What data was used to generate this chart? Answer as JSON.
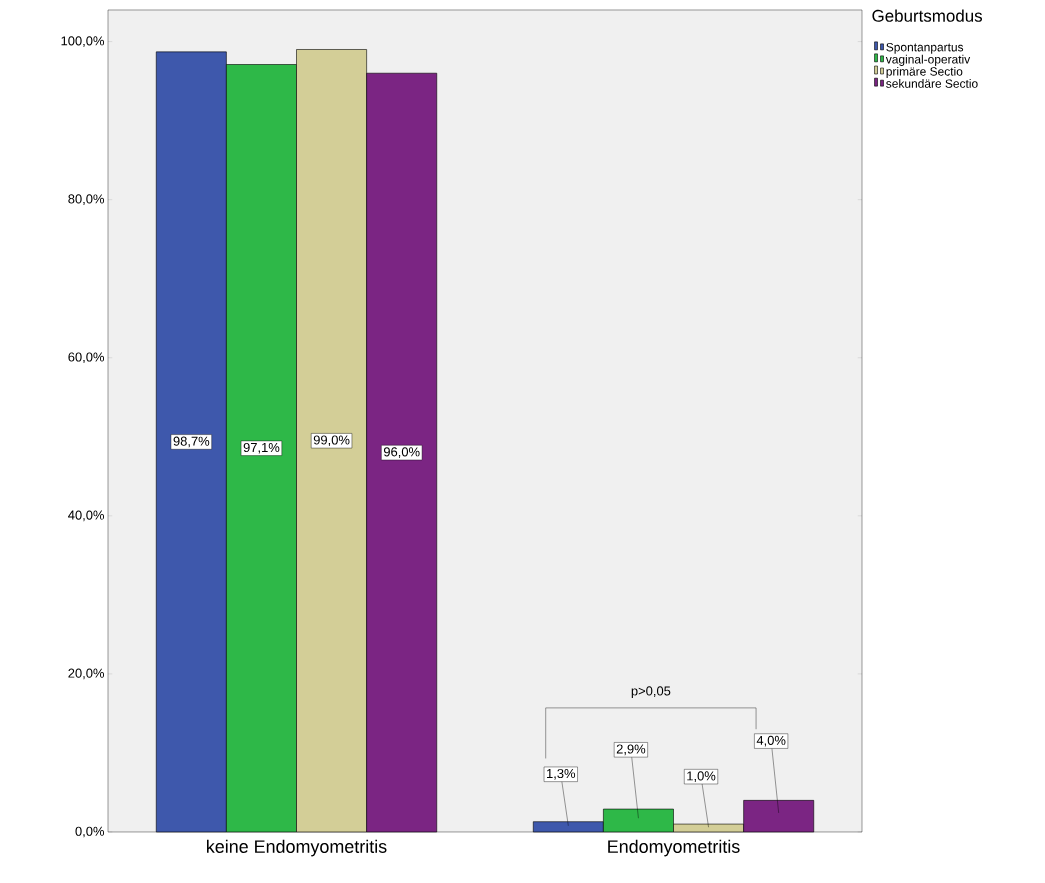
{
  "chart_data": {
    "type": "bar",
    "categories": [
      "keine Endomyometritis",
      "Endomyometritis"
    ],
    "series": [
      {
        "name": "Spontanpartus",
        "color": "#3e58ac",
        "values": [
          98.7,
          1.3
        ],
        "value_labels": [
          "98,7%",
          "1,3%"
        ]
      },
      {
        "name": "vaginal-operativ",
        "color": "#2eb848",
        "values": [
          97.1,
          2.9
        ],
        "value_labels": [
          "97,1%",
          "2,9%"
        ]
      },
      {
        "name": "primäre Sectio",
        "color": "#d3ce97",
        "values": [
          99.0,
          1.0
        ],
        "value_labels": [
          "99,0%",
          "1,0%"
        ]
      },
      {
        "name": "sekundäre Sectio",
        "color": "#7b2583",
        "values": [
          96.0,
          4.0
        ],
        "value_labels": [
          "96,0%",
          "4,0%"
        ]
      }
    ],
    "ylim": [
      0,
      104
    ],
    "yticks": [
      {
        "value": 0,
        "label": "0,0%"
      },
      {
        "value": 20,
        "label": "20,0%"
      },
      {
        "value": 40,
        "label": "40,0%"
      },
      {
        "value": 60,
        "label": "60,0%"
      },
      {
        "value": 80,
        "label": "80,0%"
      },
      {
        "value": 100,
        "label": "100,0%"
      }
    ],
    "legend": "top right",
    "legend_title": "Geburtsmodus",
    "annotations": [
      "p>0,05"
    ]
  }
}
